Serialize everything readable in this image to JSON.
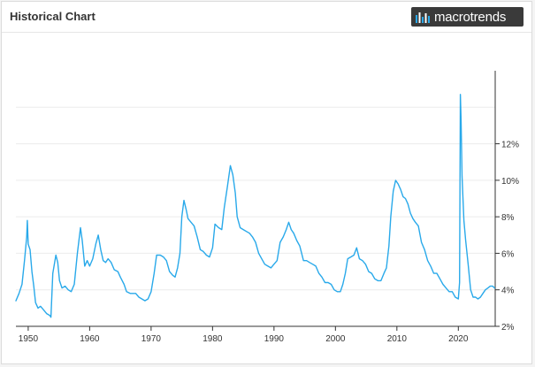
{
  "header": {
    "title": "Historical Chart",
    "logo_text": "macrotrends",
    "logo_icon": "macrotrends-bars-icon"
  },
  "colors": {
    "line": "#29a9ea",
    "grid": "#ececec",
    "axis": "#333333"
  },
  "chart_data": {
    "type": "line",
    "title": "",
    "xlabel": "",
    "ylabel": "",
    "xlim": [
      1948,
      2026
    ],
    "ylim": [
      2,
      16
    ],
    "grid": true,
    "y_axis_side": "right",
    "x_ticks": [
      1950,
      1960,
      1970,
      1980,
      1990,
      2000,
      2010,
      2020
    ],
    "x_tick_labels": [
      "1950",
      "1960",
      "1970",
      "1980",
      "1990",
      "2000",
      "2010",
      "2020"
    ],
    "y_ticks": [
      2,
      4,
      6,
      8,
      10,
      12
    ],
    "y_tick_labels": [
      "2%",
      "4%",
      "6%",
      "8%",
      "10%",
      "12%"
    ],
    "series": [
      {
        "points": [
          [
            1948.0,
            3.4
          ],
          [
            1948.5,
            3.8
          ],
          [
            1949.0,
            4.3
          ],
          [
            1949.4,
            5.6
          ],
          [
            1949.75,
            6.9
          ],
          [
            1949.85,
            7.8
          ],
          [
            1950.0,
            6.5
          ],
          [
            1950.3,
            6.2
          ],
          [
            1950.6,
            5.0
          ],
          [
            1950.9,
            4.2
          ],
          [
            1951.2,
            3.3
          ],
          [
            1951.6,
            3.0
          ],
          [
            1952.0,
            3.1
          ],
          [
            1952.5,
            2.9
          ],
          [
            1953.0,
            2.7
          ],
          [
            1953.5,
            2.6
          ],
          [
            1953.7,
            2.5
          ],
          [
            1954.0,
            4.9
          ],
          [
            1954.5,
            5.9
          ],
          [
            1954.8,
            5.5
          ],
          [
            1955.1,
            4.5
          ],
          [
            1955.5,
            4.1
          ],
          [
            1956.0,
            4.2
          ],
          [
            1956.5,
            4.0
          ],
          [
            1957.0,
            3.9
          ],
          [
            1957.5,
            4.3
          ],
          [
            1958.0,
            6.0
          ],
          [
            1958.5,
            7.4
          ],
          [
            1958.8,
            6.7
          ],
          [
            1959.2,
            5.3
          ],
          [
            1959.6,
            5.6
          ],
          [
            1960.0,
            5.3
          ],
          [
            1960.5,
            5.7
          ],
          [
            1961.0,
            6.5
          ],
          [
            1961.4,
            7.0
          ],
          [
            1961.8,
            6.2
          ],
          [
            1962.2,
            5.6
          ],
          [
            1962.6,
            5.5
          ],
          [
            1963.0,
            5.7
          ],
          [
            1963.5,
            5.5
          ],
          [
            1964.0,
            5.1
          ],
          [
            1964.6,
            5.0
          ],
          [
            1965.0,
            4.7
          ],
          [
            1965.6,
            4.3
          ],
          [
            1966.0,
            3.9
          ],
          [
            1966.6,
            3.8
          ],
          [
            1967.0,
            3.8
          ],
          [
            1967.5,
            3.8
          ],
          [
            1968.0,
            3.6
          ],
          [
            1968.5,
            3.5
          ],
          [
            1969.0,
            3.4
          ],
          [
            1969.5,
            3.5
          ],
          [
            1970.0,
            3.9
          ],
          [
            1970.5,
            4.9
          ],
          [
            1970.9,
            5.9
          ],
          [
            1971.5,
            5.9
          ],
          [
            1972.0,
            5.8
          ],
          [
            1972.5,
            5.6
          ],
          [
            1973.0,
            5.0
          ],
          [
            1973.5,
            4.8
          ],
          [
            1973.9,
            4.7
          ],
          [
            1974.3,
            5.2
          ],
          [
            1974.7,
            6.0
          ],
          [
            1975.0,
            8.0
          ],
          [
            1975.35,
            8.9
          ],
          [
            1975.7,
            8.4
          ],
          [
            1976.0,
            7.9
          ],
          [
            1976.5,
            7.7
          ],
          [
            1977.0,
            7.5
          ],
          [
            1977.5,
            6.9
          ],
          [
            1978.0,
            6.2
          ],
          [
            1978.5,
            6.1
          ],
          [
            1979.0,
            5.9
          ],
          [
            1979.5,
            5.8
          ],
          [
            1980.0,
            6.3
          ],
          [
            1980.4,
            7.6
          ],
          [
            1980.7,
            7.5
          ],
          [
            1981.0,
            7.4
          ],
          [
            1981.5,
            7.3
          ],
          [
            1981.9,
            8.5
          ],
          [
            1982.4,
            9.6
          ],
          [
            1982.9,
            10.8
          ],
          [
            1983.3,
            10.3
          ],
          [
            1983.7,
            9.3
          ],
          [
            1984.0,
            8.0
          ],
          [
            1984.5,
            7.4
          ],
          [
            1985.0,
            7.3
          ],
          [
            1985.5,
            7.2
          ],
          [
            1986.0,
            7.1
          ],
          [
            1986.5,
            6.9
          ],
          [
            1987.0,
            6.6
          ],
          [
            1987.5,
            6.0
          ],
          [
            1988.0,
            5.7
          ],
          [
            1988.5,
            5.4
          ],
          [
            1989.0,
            5.3
          ],
          [
            1989.5,
            5.2
          ],
          [
            1990.0,
            5.4
          ],
          [
            1990.5,
            5.6
          ],
          [
            1991.0,
            6.6
          ],
          [
            1991.5,
            6.9
          ],
          [
            1992.0,
            7.3
          ],
          [
            1992.4,
            7.7
          ],
          [
            1992.8,
            7.3
          ],
          [
            1993.2,
            7.1
          ],
          [
            1993.7,
            6.7
          ],
          [
            1994.2,
            6.4
          ],
          [
            1994.8,
            5.6
          ],
          [
            1995.3,
            5.6
          ],
          [
            1995.8,
            5.5
          ],
          [
            1996.3,
            5.4
          ],
          [
            1996.8,
            5.3
          ],
          [
            1997.3,
            4.9
          ],
          [
            1997.8,
            4.7
          ],
          [
            1998.3,
            4.4
          ],
          [
            1998.8,
            4.4
          ],
          [
            1999.3,
            4.3
          ],
          [
            1999.8,
            4.0
          ],
          [
            2000.3,
            3.9
          ],
          [
            2000.8,
            3.9
          ],
          [
            2001.2,
            4.3
          ],
          [
            2001.6,
            4.9
          ],
          [
            2002.0,
            5.7
          ],
          [
            2002.5,
            5.8
          ],
          [
            2003.0,
            5.9
          ],
          [
            2003.45,
            6.3
          ],
          [
            2003.9,
            5.7
          ],
          [
            2004.4,
            5.6
          ],
          [
            2004.9,
            5.4
          ],
          [
            2005.4,
            5.0
          ],
          [
            2005.9,
            4.9
          ],
          [
            2006.4,
            4.6
          ],
          [
            2006.9,
            4.5
          ],
          [
            2007.4,
            4.5
          ],
          [
            2007.9,
            4.9
          ],
          [
            2008.3,
            5.2
          ],
          [
            2008.7,
            6.4
          ],
          [
            2009.0,
            8.0
          ],
          [
            2009.4,
            9.4
          ],
          [
            2009.8,
            10.0
          ],
          [
            2010.2,
            9.8
          ],
          [
            2010.6,
            9.5
          ],
          [
            2011.0,
            9.1
          ],
          [
            2011.4,
            9.0
          ],
          [
            2011.8,
            8.7
          ],
          [
            2012.2,
            8.2
          ],
          [
            2012.6,
            7.9
          ],
          [
            2013.0,
            7.7
          ],
          [
            2013.5,
            7.5
          ],
          [
            2014.0,
            6.6
          ],
          [
            2014.5,
            6.2
          ],
          [
            2015.0,
            5.6
          ],
          [
            2015.5,
            5.3
          ],
          [
            2016.0,
            4.9
          ],
          [
            2016.5,
            4.9
          ],
          [
            2017.0,
            4.6
          ],
          [
            2017.5,
            4.3
          ],
          [
            2018.0,
            4.1
          ],
          [
            2018.5,
            3.9
          ],
          [
            2019.0,
            3.9
          ],
          [
            2019.5,
            3.6
          ],
          [
            2020.0,
            3.5
          ],
          [
            2020.2,
            4.4
          ],
          [
            2020.33,
            14.7
          ],
          [
            2020.45,
            13.3
          ],
          [
            2020.6,
            10.2
          ],
          [
            2020.9,
            7.8
          ],
          [
            2021.2,
            6.7
          ],
          [
            2021.6,
            5.4
          ],
          [
            2022.0,
            4.0
          ],
          [
            2022.4,
            3.6
          ],
          [
            2022.8,
            3.6
          ],
          [
            2023.2,
            3.5
          ],
          [
            2023.6,
            3.6
          ],
          [
            2024.0,
            3.8
          ],
          [
            2024.4,
            4.0
          ],
          [
            2024.8,
            4.1
          ],
          [
            2025.2,
            4.2
          ],
          [
            2025.6,
            4.2
          ],
          [
            2025.9,
            4.1
          ]
        ]
      }
    ]
  }
}
